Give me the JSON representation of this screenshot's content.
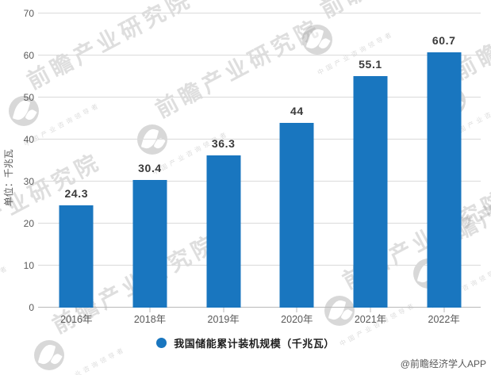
{
  "watermark": {
    "brand": "前瞻产业研究院",
    "subtext": "中国产业咨询领导者"
  },
  "credit": "@前瞻经济学人APP",
  "legend": {
    "label": "我国储能累计装机规模（千兆瓦）"
  },
  "chart_data": {
    "type": "bar",
    "categories": [
      "2016年",
      "2018年",
      "2019年",
      "2020年",
      "2021年",
      "2022年"
    ],
    "values": [
      24.3,
      30.4,
      36.3,
      44,
      55.1,
      60.7
    ],
    "title": "",
    "xlabel": "",
    "ylabel": "单位：千兆瓦",
    "ylim": [
      0,
      70
    ],
    "ytick_step": 10,
    "yticks": [
      0,
      10,
      20,
      30,
      40,
      50,
      60,
      70
    ],
    "grid": true,
    "legend": "我国储能累计装机规模（千兆瓦）",
    "legend_position": "bottom",
    "bar_color": "#1976bf",
    "grid_color": "#dadada",
    "axis_color": "#b9b9b9",
    "tick_color": "#595959",
    "value_label_color": "#3a3a3a"
  }
}
